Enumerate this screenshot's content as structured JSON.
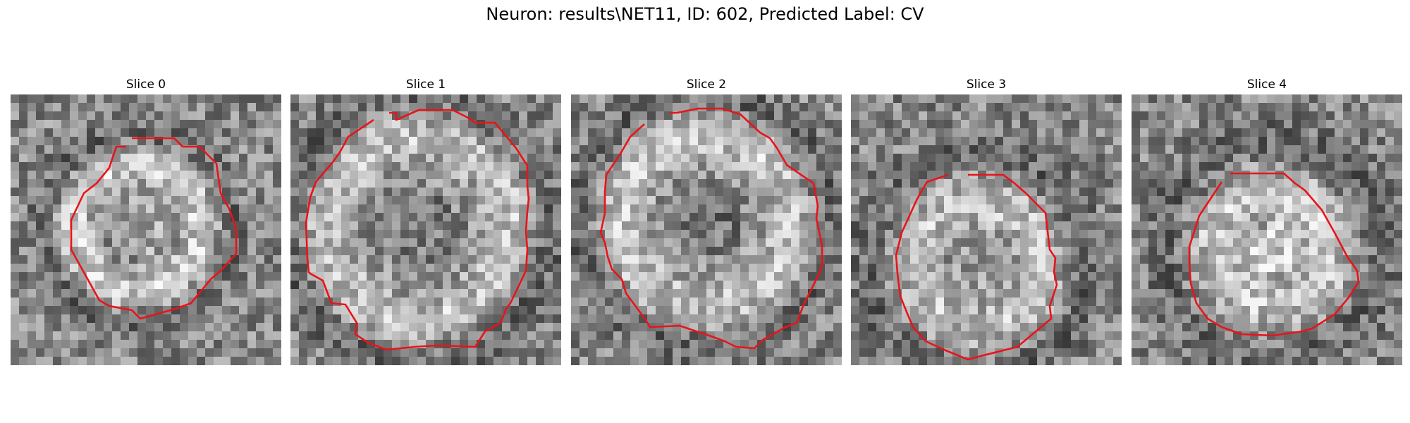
{
  "figure": {
    "title": "Neuron: results\\NET11, ID: 602, Predicted Label: CV"
  },
  "panels": [
    {
      "title": "Slice 0"
    },
    {
      "title": "Slice 1"
    },
    {
      "title": "Slice 2"
    },
    {
      "title": "Slice 3"
    },
    {
      "title": "Slice 4"
    }
  ],
  "colors": {
    "contour": "#e8141a",
    "background": "#ffffff"
  }
}
